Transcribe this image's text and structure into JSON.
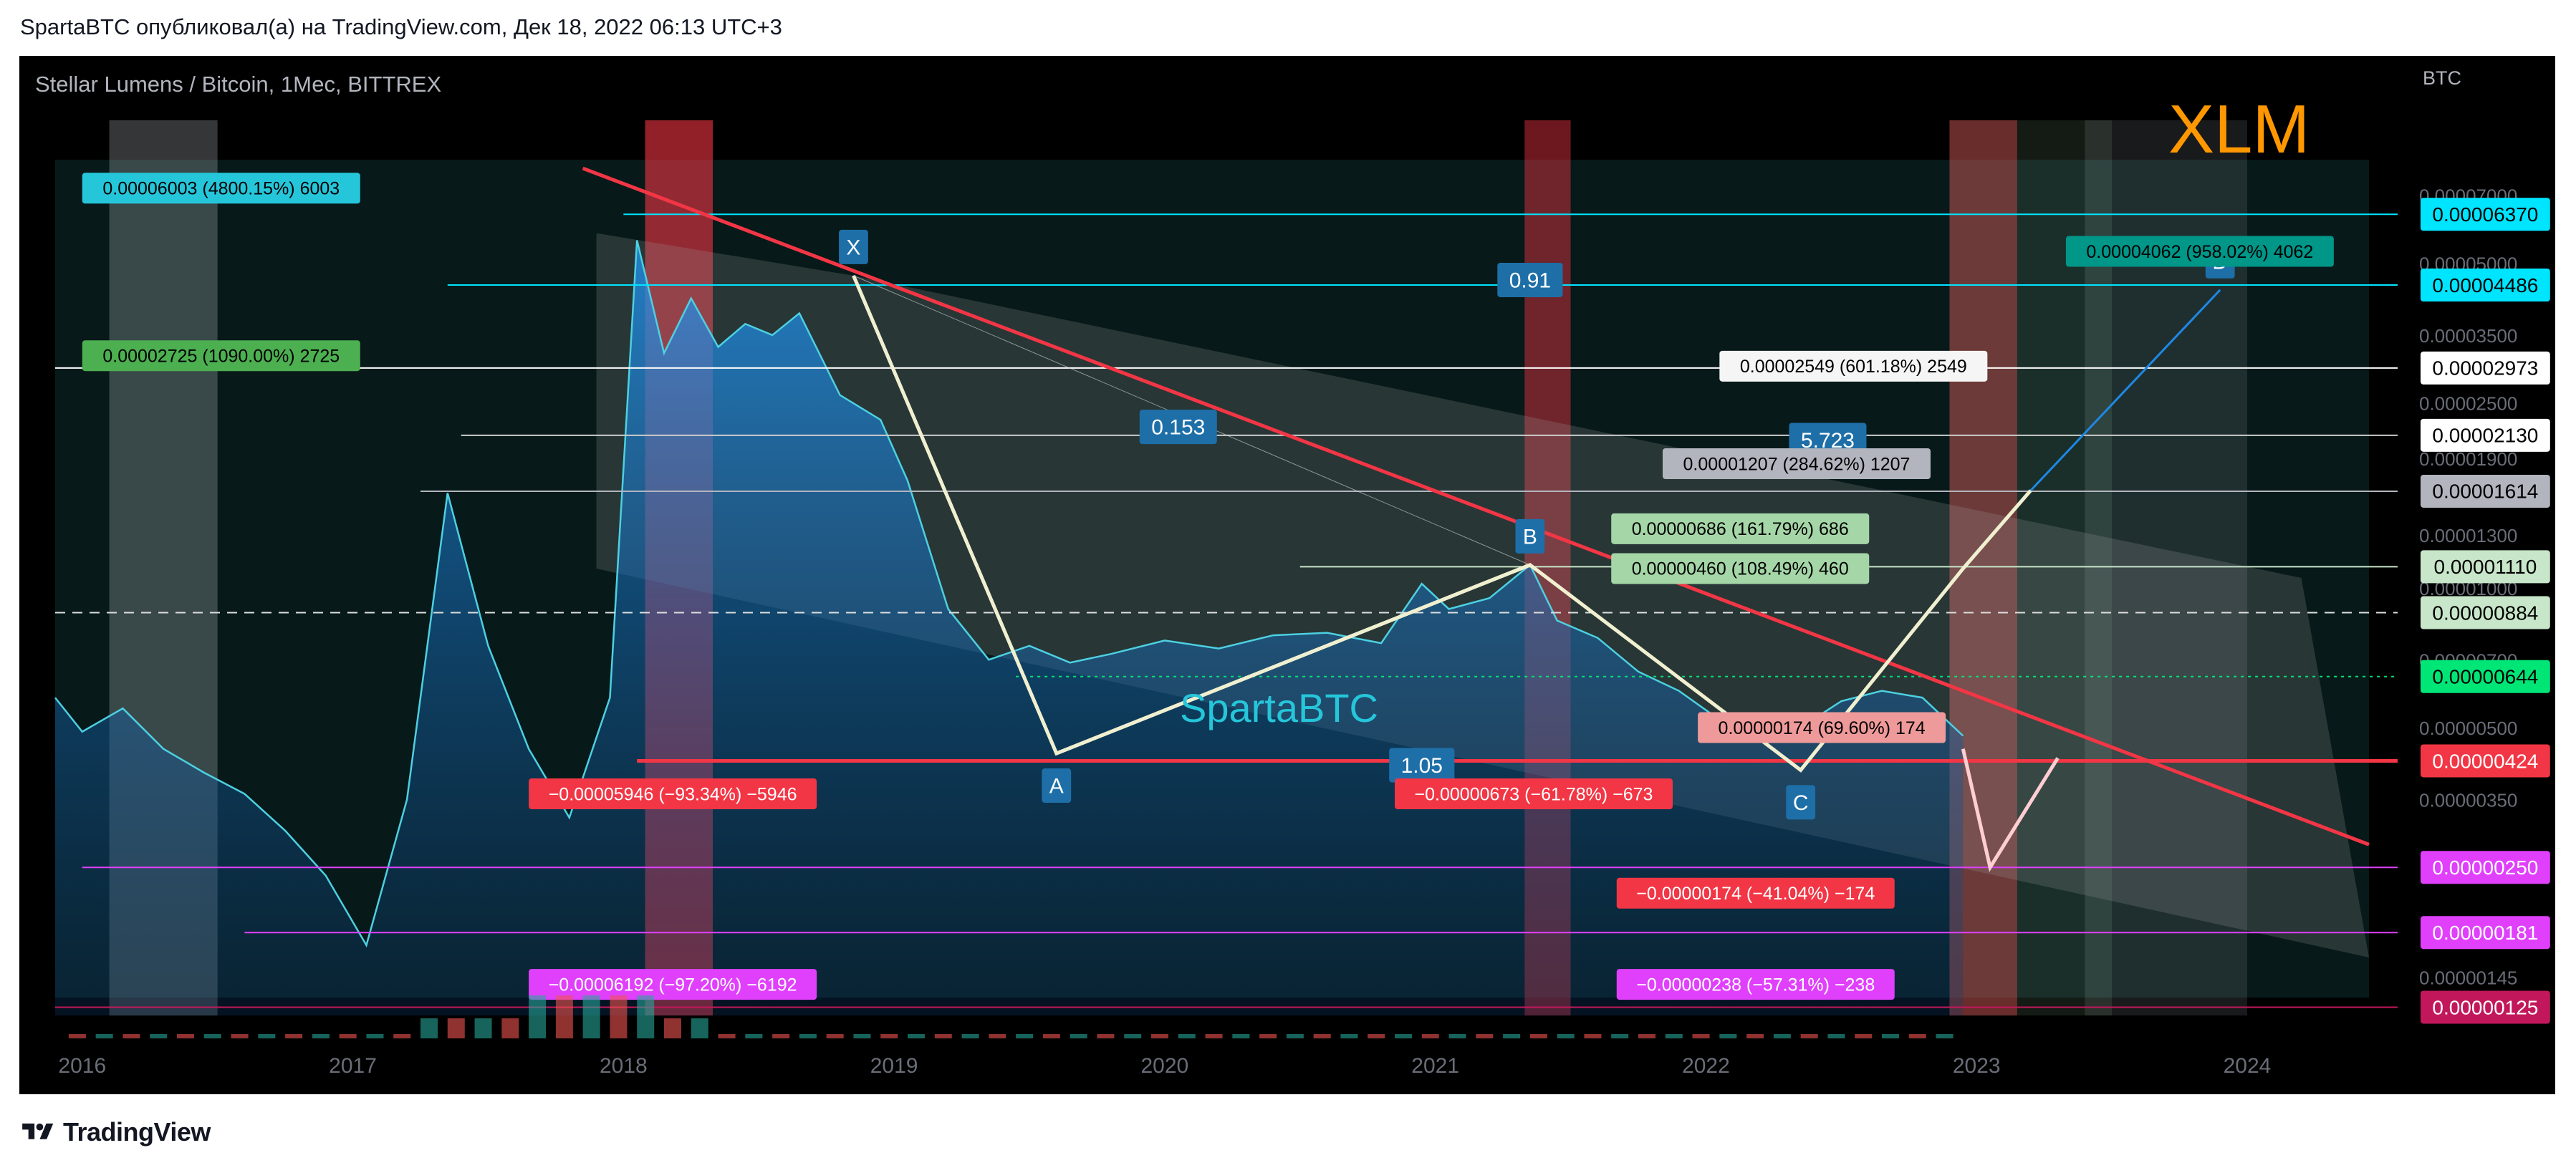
{
  "header": {
    "text": "SpartaBTC опубликовал(а) на TradingView.com, Дек 18, 2022 06:13 UTC+3"
  },
  "footer": {
    "brand": "TradingView"
  },
  "colors": {
    "price": "#2196f3",
    "resistance": "#f23645",
    "support": "#f23645",
    "pattern": "#e8e8d0",
    "brand_xlm": "#ff9800",
    "watermark": "#26c6da"
  },
  "chart_data": {
    "type": "area",
    "symbol_title": "Stellar Lumens / Bitcoin, 1Мес, BITTREX",
    "symbol_badge": "XLM",
    "watermark": "SpartaBTC",
    "y_unit": "BTC",
    "y_scale": "log",
    "ylim": [
      1.2e-06,
      8.5e-05
    ],
    "xlim": [
      2015.9,
      2024.45
    ],
    "x_ticks": [
      "2016",
      "2017",
      "2018",
      "2019",
      "2020",
      "2021",
      "2022",
      "2023",
      "2024"
    ],
    "y_ticks": [
      "0.00007000",
      "0.00005000",
      "0.00003500",
      "0.00002500",
      "0.00001900",
      "0.00001300",
      "0.00001000",
      "0.00000700",
      "0.00000500",
      "0.00000350",
      "0.00000145"
    ],
    "series": [
      {
        "name": "XLM/BTC",
        "x": [
          2015.9,
          2016.0,
          2016.15,
          2016.3,
          2016.45,
          2016.6,
          2016.75,
          2016.9,
          2017.05,
          2017.2,
          2017.35,
          2017.5,
          2017.65,
          2017.8,
          2017.95,
          2018.05,
          2018.15,
          2018.25,
          2018.35,
          2018.45,
          2018.55,
          2018.65,
          2018.8,
          2018.95,
          2019.05,
          2019.2,
          2019.35,
          2019.5,
          2019.65,
          2019.8,
          2020.0,
          2020.2,
          2020.4,
          2020.6,
          2020.8,
          2020.95,
          2021.05,
          2021.2,
          2021.35,
          2021.45,
          2021.6,
          2021.75,
          2021.9,
          2022.05,
          2022.2,
          2022.35,
          2022.5,
          2022.65,
          2022.8,
          2022.95
        ],
        "y": [
          5.8e-06,
          4.9e-06,
          5.5e-06,
          4.5e-06,
          4e-06,
          3.6e-06,
          3e-06,
          2.4e-06,
          1.7e-06,
          3.5e-06,
          1.6e-05,
          7.5e-06,
          4.5e-06,
          3.2e-06,
          5.8e-06,
          5.6e-05,
          3.2e-05,
          4.2e-05,
          3.3e-05,
          3.7e-05,
          3.5e-05,
          3.9e-05,
          2.6e-05,
          2.3e-05,
          1.7e-05,
          9e-06,
          7e-06,
          7.5e-06,
          6.9e-06,
          7.2e-06,
          7.7e-06,
          7.4e-06,
          7.9e-06,
          8e-06,
          7.6e-06,
          1.02e-05,
          9e-06,
          9.5e-06,
          1.12e-05,
          8.5e-06,
          7.8e-06,
          6.6e-06,
          6e-06,
          5.2e-06,
          4.8e-06,
          5e-06,
          5.7e-06,
          6e-06,
          5.8e-06,
          4.8e-06
        ]
      }
    ],
    "price_labels": [
      {
        "value": "0.00006370",
        "y": 6.37e-05,
        "bg": "#00e5ff",
        "fg": "#000000"
      },
      {
        "value": "0.00004486",
        "y": 4.486e-05,
        "bg": "#00e5ff",
        "fg": "#000000"
      },
      {
        "value": "0.00002973",
        "y": 2.973e-05,
        "bg": "#ffffff",
        "fg": "#000000"
      },
      {
        "value": "0.00002130",
        "y": 2.13e-05,
        "bg": "#ffffff",
        "fg": "#000000"
      },
      {
        "value": "0.00001614",
        "y": 1.614e-05,
        "bg": "#b2b5be",
        "fg": "#000000"
      },
      {
        "value": "0.00001110",
        "y": 1.11e-05,
        "bg": "#c8e6c9",
        "fg": "#000000"
      },
      {
        "value": "0.00000884",
        "y": 8.84e-06,
        "bg": "#c8e6c9",
        "fg": "#000000"
      },
      {
        "value": "0.00000644",
        "y": 6.44e-06,
        "bg": "#00e676",
        "fg": "#000000"
      },
      {
        "value": "0.00000424",
        "y": 4.24e-06,
        "bg": "#f23645",
        "fg": "#ffffff"
      },
      {
        "value": "0.00000250",
        "y": 2.5e-06,
        "bg": "#e040fb",
        "fg": "#ffffff"
      },
      {
        "value": "0.00000181",
        "y": 1.81e-06,
        "bg": "#e040fb",
        "fg": "#ffffff"
      },
      {
        "value": "0.00000125",
        "y": 1.25e-06,
        "bg": "#c2185b",
        "fg": "#ffffff"
      }
    ],
    "measure_labels": [
      {
        "text": "0.00006003 (4800.15%) 6003",
        "x": 2016.0,
        "y": 7.25e-05,
        "bg": "#26c6da",
        "fg": "#000000"
      },
      {
        "text": "0.00002725 (1090.00%) 2725",
        "x": 2016.0,
        "y": 3.16e-05,
        "bg": "#4caf50",
        "fg": "#000000"
      },
      {
        "text": "−0.00005946 (−93.34%) −5946",
        "x": 2017.65,
        "y": 3.6e-06,
        "bg": "#f23645",
        "fg": "#ffffff"
      },
      {
        "text": "−0.00006192 (−97.20%) −6192",
        "x": 2017.65,
        "y": 1.4e-06,
        "bg": "#e040fb",
        "fg": "#ffffff"
      },
      {
        "text": "−0.00000673 (−61.78%) −673",
        "x": 2020.85,
        "y": 3.6e-06,
        "bg": "#f23645",
        "fg": "#ffffff"
      },
      {
        "text": "0.00004062 (958.02%) 4062",
        "x": 2023.33,
        "y": 5.3e-05,
        "bg": "#009688",
        "fg": "#000000"
      },
      {
        "text": "0.00002549 (601.18%) 2549",
        "x": 2022.05,
        "y": 3e-05,
        "bg": "#f5f5f5",
        "fg": "#000000"
      },
      {
        "text": "0.00001207 (284.62%) 1207",
        "x": 2021.84,
        "y": 1.85e-05,
        "bg": "#b2b5be",
        "fg": "#000000"
      },
      {
        "text": "0.00000686 (161.79%) 686",
        "x": 2021.65,
        "y": 1.34e-05,
        "bg": "#a5d6a7",
        "fg": "#000000"
      },
      {
        "text": "0.00000460 (108.49%) 460",
        "x": 2021.65,
        "y": 1.1e-05,
        "bg": "#a5d6a7",
        "fg": "#000000"
      },
      {
        "text": "0.00000174 (69.60%) 174",
        "x": 2021.97,
        "y": 5e-06,
        "bg": "#ef9a9a",
        "fg": "#000000"
      },
      {
        "text": "−0.00000174 (−41.04%) −174",
        "x": 2021.67,
        "y": 2.2e-06,
        "bg": "#f23645",
        "fg": "#ffffff"
      },
      {
        "text": "−0.00000238 (−57.31%) −238",
        "x": 2021.67,
        "y": 1.4e-06,
        "bg": "#e040fb",
        "fg": "#ffffff"
      }
    ],
    "pattern_points": [
      {
        "label": "X",
        "x": 2018.85,
        "y": 4.7e-05
      },
      {
        "label": "A",
        "x": 2019.6,
        "y": 4.4e-06
      },
      {
        "label": "B",
        "x": 2021.35,
        "y": 1.12e-05
      },
      {
        "label": "C",
        "x": 2022.35,
        "y": 4.05e-06
      },
      {
        "label": "D",
        "x": 2023.9,
        "y": 4.38e-05
      }
    ],
    "ratio_labels": [
      {
        "text": "0.153",
        "x": 2020.05,
        "y": 2.22e-05
      },
      {
        "text": "0.91",
        "x": 2021.35,
        "y": 4.6e-05
      },
      {
        "text": "5.723",
        "x": 2022.45,
        "y": 2.08e-05
      },
      {
        "text": "1.05",
        "x": 2020.95,
        "y": 4.15e-06
      }
    ],
    "hlines": [
      {
        "y": 6.37e-05,
        "x0": 2018.0,
        "color": "#00e5ff"
      },
      {
        "y": 4.486e-05,
        "x0": 2017.35,
        "color": "#00e5ff"
      },
      {
        "y": 2.973e-05,
        "x0": 2015.9,
        "color": "#ffffff"
      },
      {
        "y": 2.13e-05,
        "x0": 2017.4,
        "color": "#cccccc"
      },
      {
        "y": 1.614e-05,
        "x0": 2017.25,
        "color": "#b2b5be"
      },
      {
        "y": 1.11e-05,
        "x0": 2020.5,
        "color": "#c8e6c9"
      },
      {
        "y": 8.84e-06,
        "x0": 2015.9,
        "color": "#dddddd",
        "dash": "14 10"
      },
      {
        "y": 6.44e-06,
        "x0": 2019.45,
        "color": "#00e676",
        "dash": "4 6"
      },
      {
        "y": 4.24e-06,
        "x0": 2018.05,
        "color": "#f23645",
        "width": 5
      },
      {
        "y": 2.5e-06,
        "x0": 2016.0,
        "color": "#e040fb"
      },
      {
        "y": 1.81e-06,
        "x0": 2016.6,
        "color": "#e040fb"
      },
      {
        "y": 1.25e-06,
        "x0": 2015.9,
        "color": "#c2185b"
      }
    ],
    "trendline": {
      "x0": 2017.85,
      "y0": 8e-05,
      "x1": 2024.45,
      "y1": 2.8e-06
    }
  }
}
